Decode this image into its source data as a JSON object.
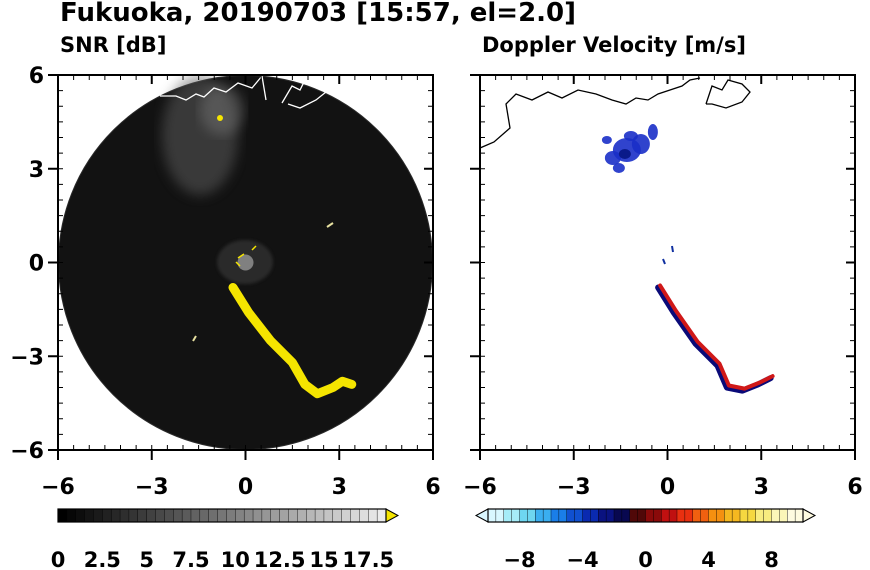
{
  "title": "Fukuoka, 20190703 [15:57, el=2.0]",
  "chart_data": [
    {
      "type": "heatmap",
      "title": "SNR [dB]",
      "x_ticks": [
        "−6",
        "−3",
        "0",
        "3",
        "6"
      ],
      "y_ticks": [
        "6",
        "3",
        "0",
        "−3",
        "−6"
      ],
      "xlim": [
        -6,
        6
      ],
      "ylim": [
        -6,
        6
      ],
      "range_ring_radius": 6,
      "colorbar": {
        "min": 0,
        "max": 18.5,
        "extend": "max",
        "tick_labels": [
          "0",
          "2.5",
          "5",
          "7.5",
          "10",
          "12.5",
          "15",
          "17.5"
        ],
        "tick_values": [
          0,
          2.5,
          5,
          7.5,
          10,
          12.5,
          15,
          17.5
        ],
        "colors_from": "#000000",
        "colors_to": "#f0f0f0",
        "extend_color": "#f5e500"
      },
      "features": [
        {
          "name": "echo band",
          "color": "#f5e500",
          "points": [
            [
              -0.4,
              -0.8
            ],
            [
              0.1,
              -1.6
            ],
            [
              0.8,
              -2.5
            ],
            [
              1.5,
              -3.2
            ],
            [
              1.9,
              -3.9
            ],
            [
              2.3,
              -4.2
            ],
            [
              2.8,
              -4.0
            ],
            [
              3.1,
              -3.8
            ],
            [
              3.4,
              -3.9
            ]
          ]
        },
        {
          "name": "cloud area",
          "color": "#6b6b6b",
          "center": [
            -1.2,
            4.2
          ]
        }
      ]
    },
    {
      "type": "heatmap",
      "title": "Doppler Velocity [m/s]",
      "x_ticks": [
        "−6",
        "−3",
        "0",
        "3",
        "6"
      ],
      "xlim": [
        -6,
        6
      ],
      "ylim": [
        -6,
        6
      ],
      "colorbar": {
        "min": -10,
        "max": 10,
        "extend": "both",
        "tick_labels": [
          "−8",
          "−4",
          "0",
          "4",
          "8"
        ],
        "tick_values": [
          -8,
          -4,
          0,
          4,
          8
        ]
      },
      "features": [
        {
          "name": "echo band",
          "points": [
            [
              -0.3,
              -0.8
            ],
            [
              0.2,
              -1.6
            ],
            [
              0.9,
              -2.6
            ],
            [
              1.6,
              -3.3
            ],
            [
              1.9,
              -4.0
            ],
            [
              2.4,
              -4.1
            ],
            [
              2.9,
              -3.9
            ],
            [
              3.3,
              -3.7
            ]
          ]
        },
        {
          "name": "cloud area",
          "center": [
            -1.3,
            3.6
          ]
        }
      ]
    }
  ]
}
